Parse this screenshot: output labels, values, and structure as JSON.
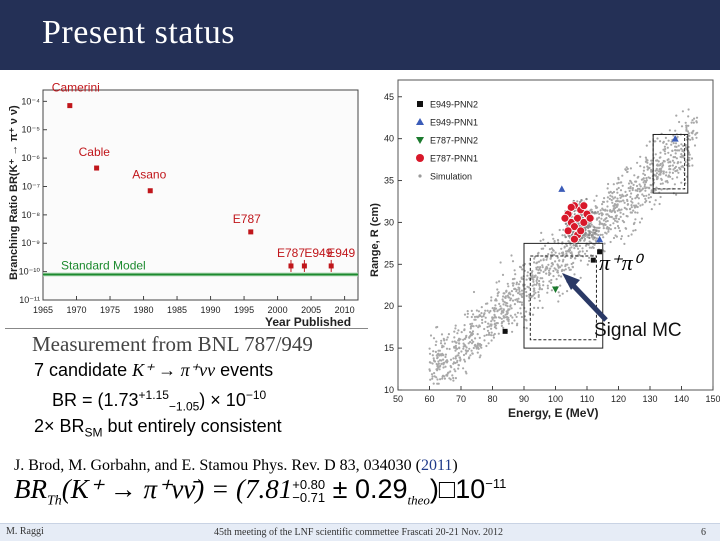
{
  "slide": {
    "title": "Present status",
    "footer": {
      "author": "M. Raggi",
      "meeting": "45th meeting of the LNF scientific commettee Frascati 20-21 Nov. 2012",
      "page": "6"
    }
  },
  "left_plot": {
    "ylabel": "Branching Ratio BR(K⁺ → π⁺ ν ν̄)",
    "xlabel": "Year Published",
    "x_ticks": [
      "1965",
      "1970",
      "1975",
      "1980",
      "1985",
      "1990",
      "1995",
      "2000",
      "2005",
      "2010"
    ],
    "y_ticks": [
      "10⁻⁴",
      "10⁻⁵",
      "10⁻⁶",
      "10⁻⁷",
      "10⁻⁸",
      "10⁻⁹",
      "10⁻¹⁰",
      "10⁻¹¹"
    ],
    "points": [
      {
        "label": "Camerini",
        "year": 1969,
        "log_br": -4.15
      },
      {
        "label": "Cable",
        "year": 1973,
        "log_br": -6.35
      },
      {
        "label": "Asano",
        "year": 1981,
        "log_br": -7.15
      },
      {
        "label": "E787",
        "year": 1996,
        "log_br": -8.6
      },
      {
        "label": "E787",
        "year": 2002,
        "log_br": -9.8
      },
      {
        "label": "E949",
        "year": 2004,
        "log_br": -9.8
      },
      {
        "label": "E949",
        "year": 2008,
        "log_br": -9.8
      }
    ],
    "standard_model_label": "Standard Model",
    "colors": {
      "points": "#c0161b",
      "standard_model": "#1c8a2e",
      "labels": "#c0161b"
    }
  },
  "right_plot": {
    "ylabel": "Range, R (cm)",
    "xlabel": "Energy, E (MeV)",
    "x_ticks": [
      "50",
      "60",
      "70",
      "80",
      "90",
      "100",
      "110",
      "120",
      "130",
      "140",
      "150"
    ],
    "y_ticks": [
      "10",
      "15",
      "20",
      "25",
      "30",
      "35",
      "40",
      "45"
    ],
    "legend": [
      {
        "label": "E949-PNN2",
        "marker": "square",
        "color": "#111111"
      },
      {
        "label": "E949-PNN1",
        "marker": "triangle",
        "color": "#3b5cb8"
      },
      {
        "label": "E787-PNN2",
        "marker": "triangle-down",
        "color": "#1c7a2e"
      },
      {
        "label": "E787-PNN1",
        "marker": "circle",
        "color": "#d8182a"
      },
      {
        "label": "Simulation",
        "marker": "dot",
        "color": "#9a9a9a"
      }
    ]
  },
  "annotations": {
    "pipi_label": "π⁺π⁰",
    "signal_mc": "Signal MC"
  },
  "text": {
    "caption": "Measurement from BNL 787/949",
    "candidates_pre": "7 candidate ",
    "candidates_formula": "K⁺ → π⁺νν",
    "candidates_post": " events",
    "br_pre": "BR = (1.73",
    "br_sup": "+1.15",
    "br_sub": "−1.05",
    "br_post": ") × 10",
    "br_exp": "−10",
    "consistency_pre": "2× BR",
    "consistency_sub": "SM",
    "consistency_post": " but entirely consistent",
    "ref_authors": "J. Brod, M. Gorbahn, and E. Stamou ",
    "ref_journal": "Phys. Rev. D 83, 034030 (",
    "ref_year": "2011",
    "ref_close": ")",
    "formula_lhs": "BR",
    "formula_lhs_sub": "Th",
    "formula_process": "(K⁺ → π⁺νν̄) = (7.81",
    "formula_sup1": "+0.80",
    "formula_sub1": "−0.71",
    "formula_mid": " ± 0.29",
    "formula_theo": "theo",
    "formula_end": ")□10",
    "formula_exp": "−11"
  }
}
